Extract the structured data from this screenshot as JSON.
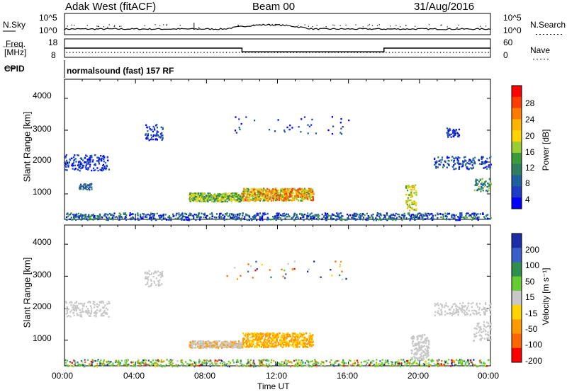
{
  "header": {
    "station": "Adak West (fitACF)",
    "beam": "Beam 00",
    "date": "31/Aug/2016"
  },
  "sky_panel": {
    "left_label": "N.Sky",
    "right_label": "N.Search",
    "left_ticks": [
      "10^5",
      "10^0"
    ],
    "right_ticks": [
      "10^5",
      "10^0"
    ]
  },
  "freq_panel": {
    "left_label_1": "Freq.",
    "left_label_2": "[MHz]",
    "left_ticks": [
      "18",
      "8"
    ],
    "right_label": "Nave",
    "right_ticks": [
      "60",
      "0"
    ]
  },
  "cpid_panel": {
    "left_label": "CPID",
    "mode_text": "normalsound (fast) 157 RF"
  },
  "power_panel": {
    "ylabel": "Slant Range [km]",
    "yticks": [
      "4000",
      "3000",
      "2000",
      "1000"
    ],
    "colorbar_label": "Power [dB]",
    "colorbar_ticks": [
      "28",
      "24",
      "20",
      "16",
      "12",
      "8",
      "4"
    ],
    "colorbar_colors": [
      "#ff0000",
      "#ff3c00",
      "#ff7a00",
      "#ffb400",
      "#ffd400",
      "#9acd32",
      "#3c9a3c",
      "#2f7f5f",
      "#1e5fa0",
      "#1f3cc8",
      "#0000ff"
    ]
  },
  "velocity_panel": {
    "ylabel": "Slant Range [km]",
    "yticks": [
      "4000",
      "3000",
      "2000",
      "1000"
    ],
    "colorbar_label": "Velocity [m s⁻¹]",
    "colorbar_ticks": [
      "200",
      "100",
      "50",
      "15",
      "-15",
      "-50",
      "-100",
      "-200"
    ],
    "colorbar_colors": [
      "#1a2ea8",
      "#3a5fc8",
      "#2f8f4f",
      "#66cc33",
      "#c8c8c8",
      "#ffd400",
      "#ff9900",
      "#ff6600",
      "#ff0000"
    ]
  },
  "xaxis": {
    "ticks": [
      "00:00",
      "04:00",
      "08:00",
      "12:00",
      "16:00",
      "20:00",
      "00:00"
    ],
    "label": "Time UT"
  },
  "chart_data": {
    "type": "heatmap",
    "title": "Adak West (fitACF)  Beam 00  31/Aug/2016",
    "xlabel": "Time UT",
    "ylabel": "Slant Range [km]",
    "xlim_hours": [
      0,
      24
    ],
    "ylim_km": [
      200,
      4600
    ],
    "freq_mhz": [
      {
        "from": 0,
        "to": 10,
        "value": 13
      },
      {
        "from": 10,
        "to": 18,
        "value": 11
      },
      {
        "from": 18,
        "to": 24,
        "value": 13
      }
    ],
    "features": [
      {
        "name": "power-echo-band",
        "t": [
          7,
          14
        ],
        "range_km": [
          750,
          1150
        ],
        "power_db": 20,
        "velocity_ms": -40
      },
      {
        "name": "ground-scatter-near",
        "t": [
          0,
          24
        ],
        "range_km": [
          200,
          400
        ],
        "power_db": 8,
        "velocity_ms": 0
      },
      {
        "name": "patch-early",
        "t": [
          0,
          2.5
        ],
        "range_km": [
          1700,
          2200
        ],
        "power_db": 6,
        "velocity_ms": 0
      },
      {
        "name": "patch-evening",
        "t": [
          21,
          24
        ],
        "range_km": [
          1800,
          3100
        ],
        "power_db": 6,
        "velocity_ms": 0
      }
    ]
  }
}
